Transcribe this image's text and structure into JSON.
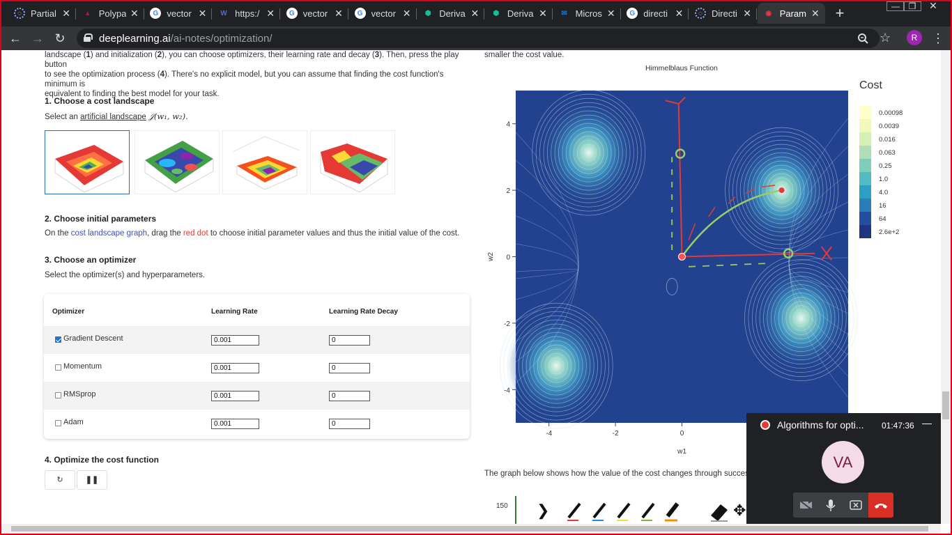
{
  "browser": {
    "tabs": [
      {
        "label": "Partial",
        "icon": "loading-circle-icon"
      },
      {
        "label": "Polypa",
        "icon": "polypad-icon"
      },
      {
        "label": "vector",
        "icon": "google-icon"
      },
      {
        "label": "https:/",
        "icon": "wikipedia-icon"
      },
      {
        "label": "vector",
        "icon": "google-icon"
      },
      {
        "label": "vector",
        "icon": "google-icon"
      },
      {
        "label": "Deriva",
        "icon": "khan-academy-icon"
      },
      {
        "label": "Deriva",
        "icon": "khan-academy-icon"
      },
      {
        "label": "Micros",
        "icon": "outlook-mail-icon"
      },
      {
        "label": "directi",
        "icon": "google-icon"
      },
      {
        "label": "Directi",
        "icon": "loading-circle-icon"
      },
      {
        "label": "Param",
        "icon": "deeplearning-icon"
      }
    ],
    "active_tab_index": 11,
    "url_domain": "deeplearning.ai",
    "url_path": "/ai-notes/optimization/",
    "profile_initial": "R"
  },
  "intro": {
    "line1_a": "landscape (",
    "line1_b": "1",
    "line1_c": ") and initialization (",
    "line1_d": "2",
    "line1_e": "), you can choose optimizers, their learning rate and decay (",
    "line1_f": "3",
    "line1_g": "). Then, press the play button",
    "line2_a": "to see the optimization process (",
    "line2_b": "4",
    "line2_c": "). There's no explicit model, but you can assume that finding the cost function's minimum is",
    "line3": "equivalent to finding the best model for your task.",
    "right_top": "smaller the cost value."
  },
  "step1": {
    "title": "1. Choose a cost landscape",
    "desc_prefix": "Select an ",
    "desc_link": "artificial landscape",
    "desc_math": "𝒥(w₁, w₂)."
  },
  "step2": {
    "title": "2. Choose initial parameters",
    "desc_a": "On the ",
    "desc_link": "cost landscape graph",
    "desc_b": ", drag the ",
    "desc_red": "red dot",
    "desc_c": " to choose initial parameter values and thus the initial value of the cost."
  },
  "step3": {
    "title": "3. Choose an optimizer",
    "desc": "Select the optimizer(s) and hyperparameters."
  },
  "optimizer_table": {
    "headers": [
      "Optimizer",
      "Learning Rate",
      "Learning Rate Decay"
    ],
    "rows": [
      {
        "name": "Gradient Descent",
        "checked": true,
        "lr": "0.001",
        "decay": "0"
      },
      {
        "name": "Momentum",
        "checked": false,
        "lr": "0.001",
        "decay": "0"
      },
      {
        "name": "RMSprop",
        "checked": false,
        "lr": "0.001",
        "decay": "0"
      },
      {
        "name": "Adam",
        "checked": false,
        "lr": "0.001",
        "decay": "0"
      }
    ]
  },
  "step4": {
    "title": "4. Optimize the cost function",
    "reset_icon": "reset-icon",
    "pause_icon": "pause-icon"
  },
  "chart_data": {
    "type": "heatmap",
    "title": "Himmelblaus Function",
    "xlabel": "w1",
    "ylabel": "w2",
    "xlim": [
      -5,
      5
    ],
    "ylim": [
      -5,
      5
    ],
    "x_ticks": [
      "-4",
      "-2",
      "0"
    ],
    "y_ticks": [
      "4",
      "2",
      "0",
      "-2",
      "-4"
    ],
    "legend_title": "Cost",
    "colorbar": [
      {
        "label": "0.00098",
        "color": "#ffffcc"
      },
      {
        "label": "0.0039",
        "color": "#f0f9b8"
      },
      {
        "label": "0.016",
        "color": "#d6efb3"
      },
      {
        "label": "0.063",
        "color": "#b0dfb6"
      },
      {
        "label": "0.25",
        "color": "#7fcdbb"
      },
      {
        "label": "1.0",
        "color": "#52bcc2"
      },
      {
        "label": "4.0",
        "color": "#2c9fc4"
      },
      {
        "label": "16",
        "color": "#2a7db8"
      },
      {
        "label": "64",
        "color": "#244fa0"
      },
      {
        "label": "2.6e+2",
        "color": "#1e3582"
      }
    ],
    "minima": [
      [
        3.0,
        2.0
      ],
      [
        -2.805,
        3.131
      ],
      [
        -3.779,
        -3.283
      ],
      [
        3.584,
        -1.848
      ]
    ],
    "start_point": [
      0,
      0
    ]
  },
  "second_graph_caption": "The graph below shows how the value of the cost changes through successive e",
  "second_graph_ytick": "150",
  "pip": {
    "title": "Algorithms for opti...",
    "time": "01:47:36",
    "avatar": "VA",
    "minimize": "—"
  }
}
